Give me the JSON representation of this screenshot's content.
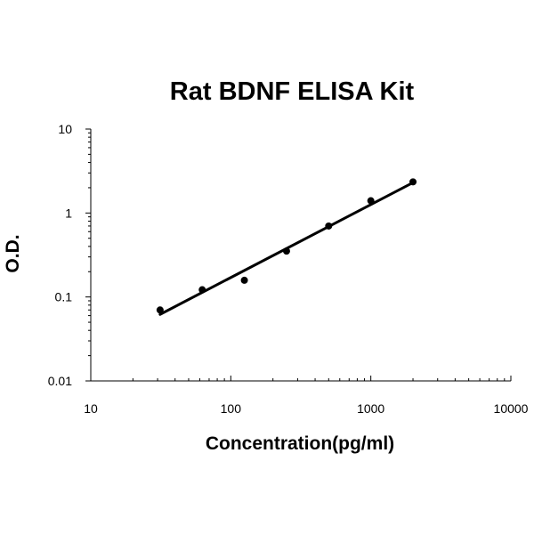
{
  "chart_data": {
    "type": "scatter",
    "title": "Rat BDNF ELISA Kit",
    "xlabel": "Concentration(pg/ml)",
    "ylabel": "O.D.",
    "x_scale": "log",
    "y_scale": "log",
    "xlim": [
      10,
      10000
    ],
    "ylim": [
      0.01,
      10
    ],
    "x_ticks": [
      "10",
      "100",
      "1000",
      "10000"
    ],
    "y_ticks": [
      "0.01",
      "0.1",
      "1",
      "10"
    ],
    "grid": false,
    "legend": "none",
    "series": [
      {
        "points": [
          {
            "x": 31.25,
            "y": 0.07
          },
          {
            "x": 62.5,
            "y": 0.122
          },
          {
            "x": 125,
            "y": 0.158
          },
          {
            "x": 250,
            "y": 0.352
          },
          {
            "x": 500,
            "y": 0.7
          },
          {
            "x": 1000,
            "y": 1.4
          },
          {
            "x": 2000,
            "y": 2.35
          }
        ],
        "color": "#000000"
      }
    ],
    "trendline": {
      "from": {
        "x": 31.25,
        "y": 0.062
      },
      "to": {
        "x": 2000,
        "y": 2.3
      },
      "color": "#000000"
    }
  }
}
